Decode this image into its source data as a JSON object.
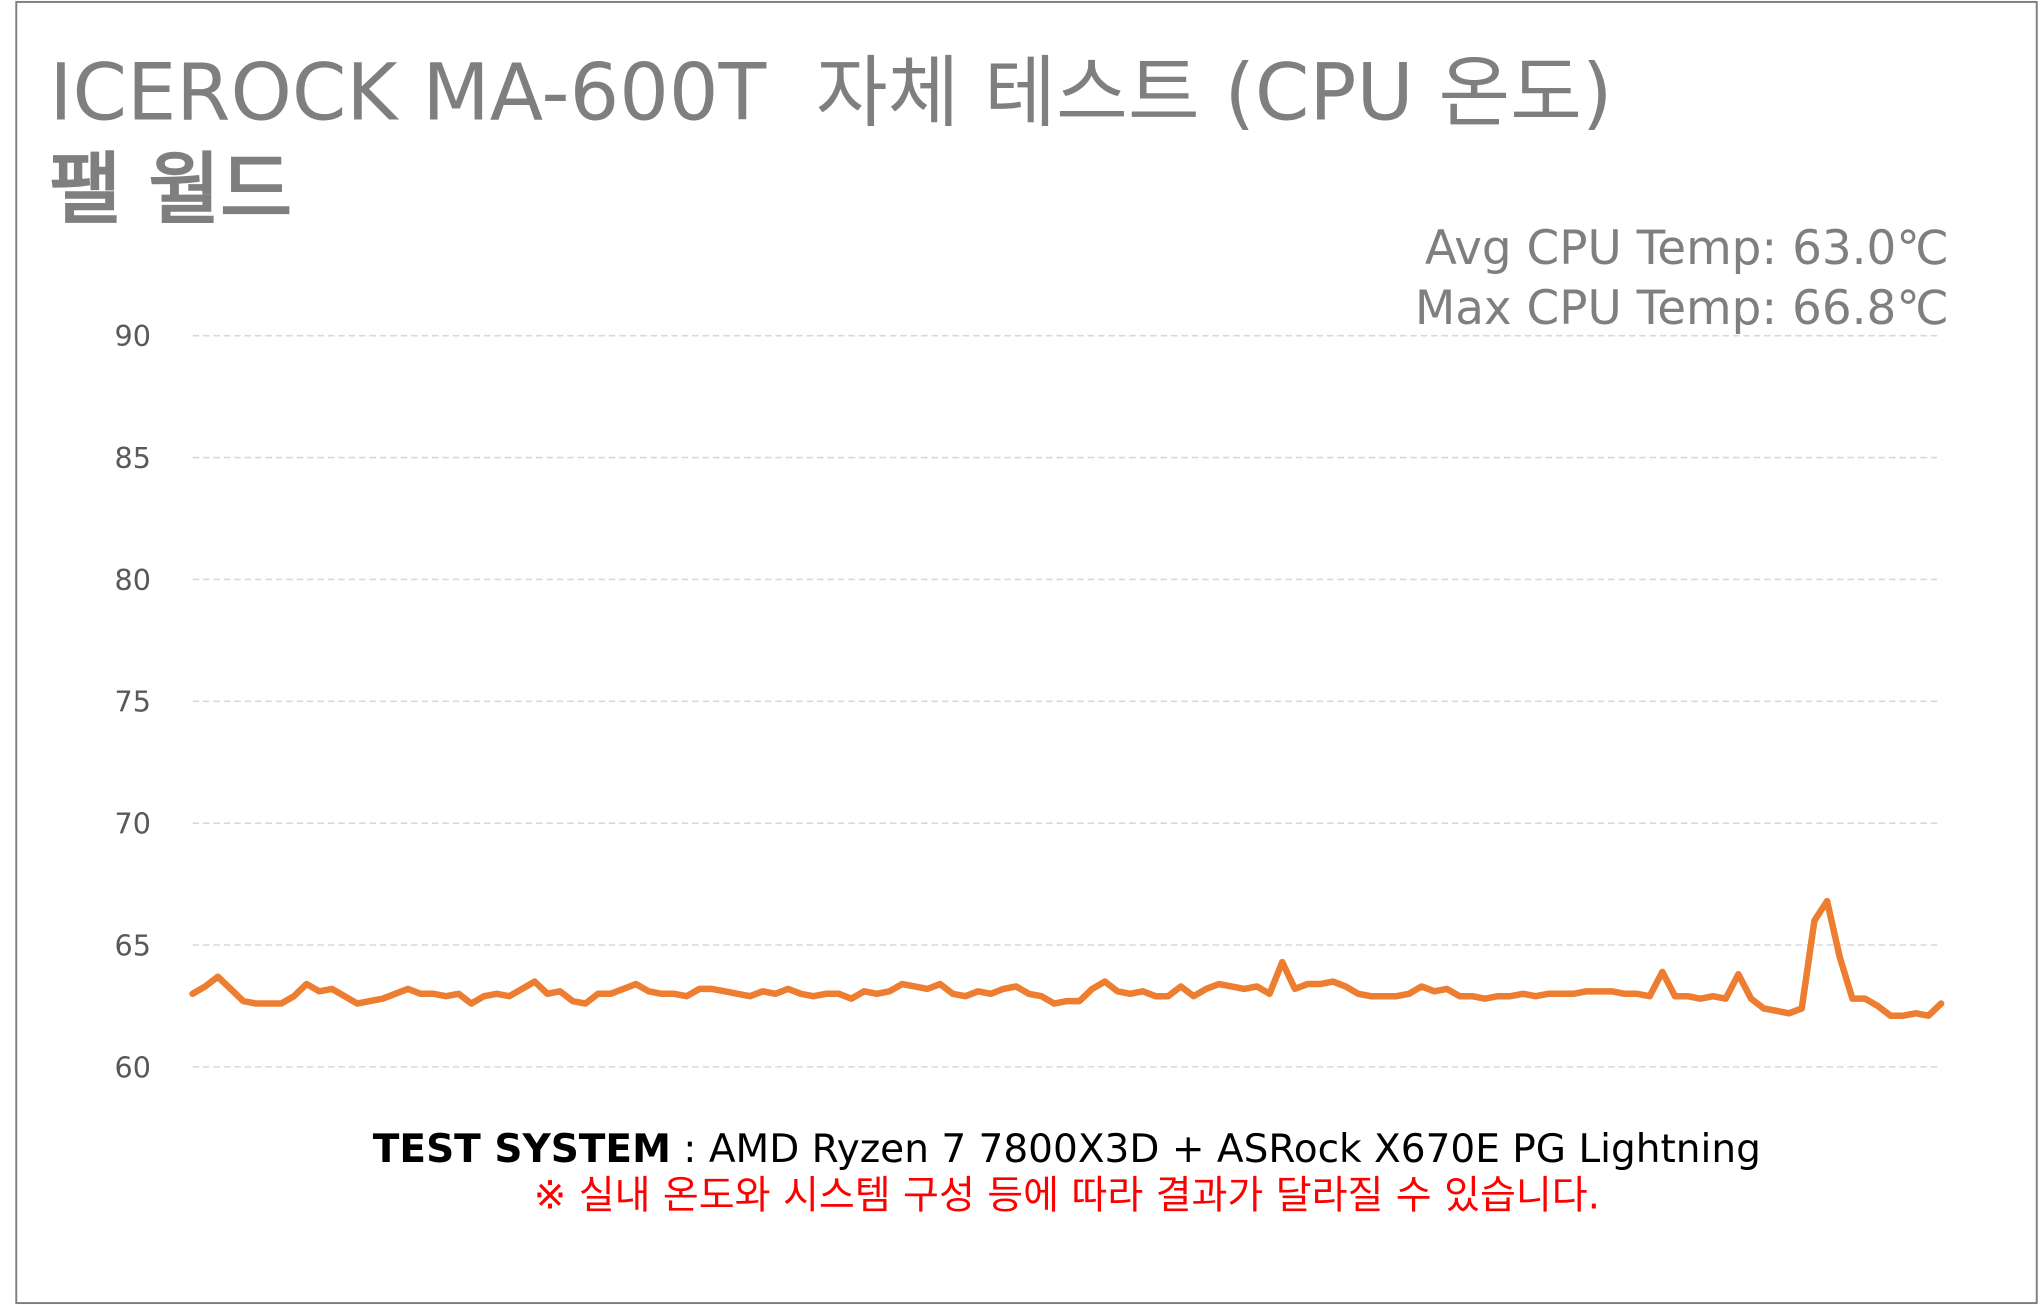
{
  "chart_data": {
    "type": "line",
    "title": "ICEROCK MA-600T  자체 테스트 (CPU 온도)",
    "subtitle": "팰 월드",
    "annotations": [
      "Avg CPU Temp: 63.0℃",
      "Max CPU Temp: 66.8℃"
    ],
    "color": "#ed7d31",
    "values": [
      63.0,
      63.3,
      63.7,
      63.2,
      62.7,
      62.6,
      62.6,
      62.6,
      62.9,
      63.4,
      63.1,
      63.2,
      62.9,
      62.6,
      62.7,
      62.8,
      63.0,
      63.2,
      63.0,
      63.0,
      62.9,
      63.0,
      62.6,
      62.9,
      63.0,
      62.9,
      63.2,
      63.5,
      63.0,
      63.1,
      62.7,
      62.6,
      63.0,
      63.0,
      63.2,
      63.4,
      63.1,
      63.0,
      63.0,
      62.9,
      63.2,
      63.2,
      63.1,
      63.0,
      62.9,
      63.1,
      63.0,
      63.2,
      63.0,
      62.9,
      63.0,
      63.0,
      62.8,
      63.1,
      63.0,
      63.1,
      63.4,
      63.3,
      63.2,
      63.4,
      63.0,
      62.9,
      63.1,
      63.0,
      63.2,
      63.3,
      63.0,
      62.9,
      62.6,
      62.7,
      62.7,
      63.2,
      63.5,
      63.1,
      63.0,
      63.1,
      62.9,
      62.9,
      63.3,
      62.9,
      63.2,
      63.4,
      63.3,
      63.2,
      63.3,
      63.0,
      64.3,
      63.2,
      63.4,
      63.4,
      63.5,
      63.3,
      63.0,
      62.9,
      62.9,
      62.9,
      63.0,
      63.3,
      63.1,
      63.2,
      62.9,
      62.9,
      62.8,
      62.9,
      62.9,
      63.0,
      62.9,
      63.0,
      63.0,
      63.0,
      63.1,
      63.1,
      63.1,
      63.0,
      63.0,
      62.9,
      63.9,
      62.9,
      62.9,
      62.8,
      62.9,
      62.8,
      63.8,
      62.8,
      62.4,
      62.3,
      62.2,
      62.4,
      66.0,
      66.8,
      64.5,
      62.8,
      62.8,
      62.5,
      62.1,
      62.1,
      62.2,
      62.1,
      62.6
    ],
    "ylim": [
      60,
      90
    ],
    "yticks": [
      60,
      65,
      70,
      75,
      80,
      85,
      90
    ],
    "grid": true
  },
  "footer": {
    "label": "TEST SYSTEM",
    "text": " : AMD Ryzen 7 7800X3D + ASRock X670E PG Lightning",
    "note": "※ 실내 온도와 시스템 구성 등에 따라 결과가 달라질 수 있습니다."
  }
}
